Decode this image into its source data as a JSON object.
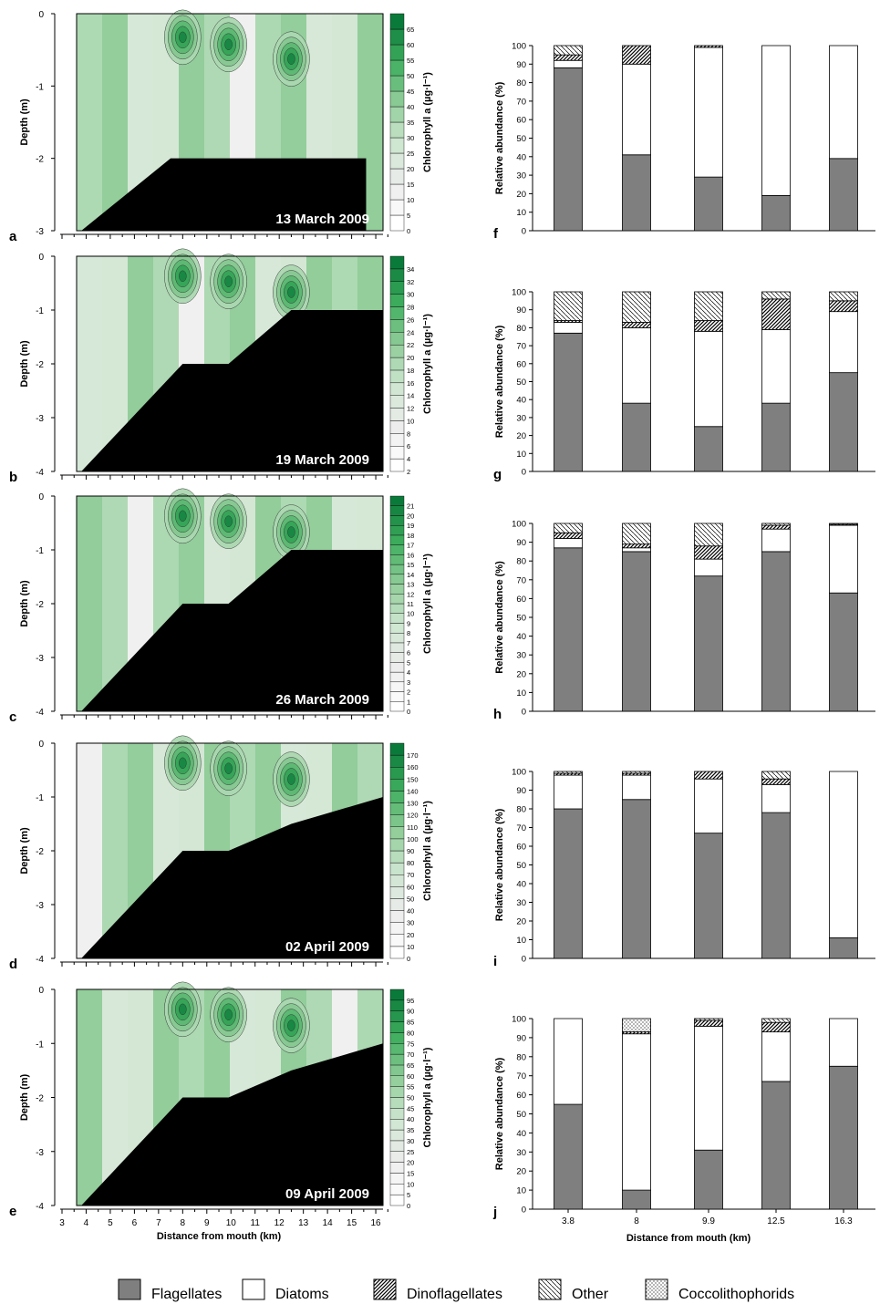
{
  "figure": {
    "legend": {
      "items": [
        {
          "key": "flag",
          "label": "Flagellates",
          "pattern": "solid-gray",
          "color": "#7f7f7f"
        },
        {
          "key": "diat",
          "label": "Diatoms",
          "pattern": "white",
          "color": "#ffffff"
        },
        {
          "key": "dino",
          "label": "Dinoflagellates",
          "pattern": "hatch-dense",
          "color": "#000000"
        },
        {
          "key": "other",
          "label": "Other",
          "pattern": "hatch-light",
          "color": "#000000"
        },
        {
          "key": "cocco",
          "label": "Coccolithophorids",
          "pattern": "dots",
          "color": "#000000"
        }
      ]
    },
    "colors": {
      "flagellates": "#7f7f7f",
      "bathymetry": "#000000",
      "chl_low": "#ffffff",
      "chl_high": "#0a7a3a"
    }
  },
  "chart_data": [
    {
      "type": "heatmap",
      "panel": "a",
      "date_label": "13 March 2009",
      "ylabel": "Depth (m)",
      "colorbar_label": "Chlorophyll a (µg·l⁻¹)",
      "y_ticks": [
        "0",
        "-1",
        "-2",
        "-3"
      ],
      "colorbar_ticks": [
        "0",
        "5",
        "10",
        "15",
        "20",
        "25",
        "30",
        "35",
        "40",
        "45",
        "50",
        "55",
        "60",
        "65"
      ],
      "bottom_profile": {
        "x_km": [
          3.8,
          7.5,
          15.6
        ],
        "depth_m": [
          -3.0,
          -2.0,
          -2.0
        ]
      }
    },
    {
      "type": "heatmap",
      "panel": "b",
      "date_label": "19 March 2009",
      "ylabel": "Depth (m)",
      "colorbar_label": "Chlorophyll a (µg·l⁻¹)",
      "y_ticks": [
        "0",
        "-1",
        "-2",
        "-3",
        "-4"
      ],
      "colorbar_ticks": [
        "2",
        "4",
        "6",
        "8",
        "10",
        "12",
        "14",
        "16",
        "18",
        "20",
        "22",
        "24",
        "26",
        "28",
        "30",
        "32",
        "34"
      ],
      "bottom_profile": {
        "x_km": [
          3.8,
          8.0,
          9.9,
          12.5,
          16.3
        ],
        "depth_m": [
          -4.0,
          -2.0,
          -2.0,
          -1.0,
          -1.0
        ]
      }
    },
    {
      "type": "heatmap",
      "panel": "c",
      "date_label": "26 March 2009",
      "ylabel": "Depth (m)",
      "colorbar_label": "Chlorophyll a (µg·l⁻¹)",
      "y_ticks": [
        "0",
        "-1",
        "-2",
        "-3",
        "-4"
      ],
      "colorbar_ticks": [
        "0",
        "1",
        "2",
        "3",
        "4",
        "5",
        "6",
        "7",
        "8",
        "9",
        "10",
        "11",
        "12",
        "13",
        "14",
        "15",
        "16",
        "17",
        "18",
        "19",
        "20",
        "21"
      ],
      "bottom_profile": {
        "x_km": [
          3.8,
          8.0,
          9.9,
          12.5,
          16.3
        ],
        "depth_m": [
          -4.0,
          -2.0,
          -2.0,
          -1.0,
          -1.0
        ]
      }
    },
    {
      "type": "heatmap",
      "panel": "d",
      "date_label": "02 April 2009",
      "ylabel": "Depth (m)",
      "colorbar_label": "Chlorophyll a (µg·l⁻¹)",
      "y_ticks": [
        "0",
        "-1",
        "-2",
        "-3",
        "-4"
      ],
      "colorbar_ticks": [
        "0",
        "10",
        "20",
        "30",
        "40",
        "50",
        "60",
        "70",
        "80",
        "90",
        "100",
        "110",
        "120",
        "130",
        "140",
        "150",
        "160",
        "170"
      ],
      "bottom_profile": {
        "x_km": [
          3.8,
          8.0,
          9.9,
          12.5,
          16.3
        ],
        "depth_m": [
          -4.0,
          -2.0,
          -2.0,
          -1.5,
          -1.0
        ]
      }
    },
    {
      "type": "heatmap",
      "panel": "e",
      "date_label": "09 April 2009",
      "ylabel": "Depth (m)",
      "xlabel": "Distance from mouth (km)",
      "colorbar_label": "Chlorophyll a (µg·l⁻¹)",
      "x_ticks": [
        "3",
        "4",
        "5",
        "6",
        "7",
        "8",
        "9",
        "10",
        "11",
        "12",
        "13",
        "14",
        "15",
        "16"
      ],
      "y_ticks": [
        "0",
        "-1",
        "-2",
        "-3",
        "-4"
      ],
      "colorbar_ticks": [
        "0",
        "5",
        "10",
        "15",
        "20",
        "25",
        "30",
        "35",
        "40",
        "45",
        "50",
        "55",
        "60",
        "65",
        "70",
        "75",
        "80",
        "85",
        "90",
        "95"
      ],
      "bottom_profile": {
        "x_km": [
          3.8,
          8.0,
          9.9,
          12.5,
          16.3
        ],
        "depth_m": [
          -4.0,
          -2.0,
          -2.0,
          -1.5,
          -1.0
        ]
      }
    },
    {
      "type": "bar",
      "panel": "f",
      "stacked": true,
      "ylabel": "Relative abundance (%)",
      "ylim": [
        0,
        100
      ],
      "y_ticks": [
        "0",
        "10",
        "20",
        "30",
        "40",
        "50",
        "60",
        "70",
        "80",
        "90",
        "100"
      ],
      "categories": [
        "3.8",
        "8",
        "9.9",
        "12.5",
        "16.3"
      ],
      "series": [
        {
          "name": "Flagellates",
          "values": [
            88,
            41,
            29,
            19,
            39
          ]
        },
        {
          "name": "Diatoms",
          "values": [
            4,
            49,
            70,
            81,
            61
          ]
        },
        {
          "name": "Dinoflagellates",
          "values": [
            3,
            10,
            1,
            0,
            0
          ]
        },
        {
          "name": "Other",
          "values": [
            5,
            0,
            0,
            0,
            0
          ]
        },
        {
          "name": "Coccolithophorids",
          "values": [
            0,
            0,
            0,
            0,
            0
          ]
        }
      ]
    },
    {
      "type": "bar",
      "panel": "g",
      "stacked": true,
      "ylabel": "Relative abundance (%)",
      "ylim": [
        0,
        100
      ],
      "y_ticks": [
        "0",
        "10",
        "20",
        "30",
        "40",
        "50",
        "60",
        "70",
        "80",
        "90",
        "100"
      ],
      "categories": [
        "3.8",
        "8",
        "9.9",
        "12.5",
        "16.3"
      ],
      "series": [
        {
          "name": "Flagellates",
          "values": [
            77,
            38,
            25,
            38,
            55
          ]
        },
        {
          "name": "Diatoms",
          "values": [
            6,
            42,
            53,
            41,
            34
          ]
        },
        {
          "name": "Dinoflagellates",
          "values": [
            1,
            3,
            6,
            17,
            6
          ]
        },
        {
          "name": "Other",
          "values": [
            16,
            17,
            16,
            4,
            5
          ]
        },
        {
          "name": "Coccolithophorids",
          "values": [
            0,
            0,
            0,
            0,
            0
          ]
        }
      ]
    },
    {
      "type": "bar",
      "panel": "h",
      "stacked": true,
      "ylabel": "Relative abundance (%)",
      "ylim": [
        0,
        100
      ],
      "y_ticks": [
        "0",
        "10",
        "20",
        "30",
        "40",
        "50",
        "60",
        "70",
        "80",
        "90",
        "100"
      ],
      "categories": [
        "3.8",
        "8",
        "9.9",
        "12.5",
        "16.3"
      ],
      "series": [
        {
          "name": "Flagellates",
          "values": [
            87,
            85,
            72,
            85,
            63
          ]
        },
        {
          "name": "Diatoms",
          "values": [
            5,
            2,
            9,
            12,
            36
          ]
        },
        {
          "name": "Dinoflagellates",
          "values": [
            3,
            2,
            7,
            2,
            0.5
          ]
        },
        {
          "name": "Other",
          "values": [
            5,
            11,
            12,
            1,
            0.5
          ]
        },
        {
          "name": "Coccolithophorids",
          "values": [
            0,
            0,
            0,
            0,
            0
          ]
        }
      ]
    },
    {
      "type": "bar",
      "panel": "i",
      "stacked": true,
      "ylabel": "Relative abundance (%)",
      "ylim": [
        0,
        100
      ],
      "y_ticks": [
        "0",
        "10",
        "20",
        "30",
        "40",
        "50",
        "60",
        "70",
        "80",
        "90",
        "100"
      ],
      "categories": [
        "3.8",
        "8",
        "9.9",
        "12.5",
        "16.3"
      ],
      "series": [
        {
          "name": "Flagellates",
          "values": [
            80,
            85,
            67,
            78,
            11
          ]
        },
        {
          "name": "Diatoms",
          "values": [
            18,
            13,
            29,
            15,
            89
          ]
        },
        {
          "name": "Dinoflagellates",
          "values": [
            1,
            1,
            4,
            3,
            0
          ]
        },
        {
          "name": "Other",
          "values": [
            1,
            1,
            0,
            4,
            0
          ]
        },
        {
          "name": "Coccolithophorids",
          "values": [
            0,
            0,
            0,
            0,
            0
          ]
        }
      ]
    },
    {
      "type": "bar",
      "panel": "j",
      "stacked": true,
      "ylabel": "Relative abundance (%)",
      "xlabel": "Distance from mouth (km)",
      "ylim": [
        0,
        100
      ],
      "y_ticks": [
        "0",
        "10",
        "20",
        "30",
        "40",
        "50",
        "60",
        "70",
        "80",
        "90",
        "100"
      ],
      "categories": [
        "3.8",
        "8",
        "9.9",
        "12.5",
        "16.3"
      ],
      "series": [
        {
          "name": "Flagellates",
          "values": [
            55,
            10,
            31,
            67,
            75
          ]
        },
        {
          "name": "Diatoms",
          "values": [
            45,
            82,
            65,
            26,
            25
          ]
        },
        {
          "name": "Dinoflagellates",
          "values": [
            0,
            1,
            3,
            5,
            0
          ]
        },
        {
          "name": "Other",
          "values": [
            0,
            0,
            1,
            2,
            0
          ]
        },
        {
          "name": "Coccolithophorids",
          "values": [
            0,
            7,
            0,
            0,
            0
          ]
        }
      ]
    }
  ]
}
